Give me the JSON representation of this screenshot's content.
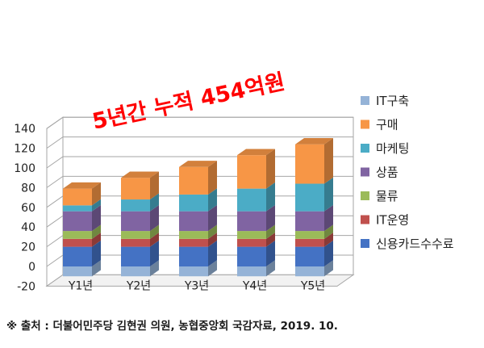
{
  "chart_data": {
    "type": "bar",
    "stacked": true,
    "three_d": true,
    "categories": [
      "Y1년",
      "Y2년",
      "Y3년",
      "Y4년",
      "Y5년"
    ],
    "ylim": [
      -20,
      140
    ],
    "yticks": [
      -20,
      0,
      20,
      40,
      60,
      80,
      100,
      120,
      140
    ],
    "grid": true,
    "legend_position": "right",
    "series": [
      {
        "name": "신용카드수수료",
        "color": "#4472c4",
        "values": [
          20,
          20,
          20,
          20,
          20
        ]
      },
      {
        "name": "IT운영",
        "color": "#c0504d",
        "values": [
          8,
          8,
          8,
          8,
          8
        ]
      },
      {
        "name": "물류",
        "color": "#9bbb59",
        "values": [
          8,
          8,
          8,
          8,
          8
        ]
      },
      {
        "name": "상품",
        "color": "#8064a2",
        "values": [
          20,
          20,
          20,
          20,
          20
        ]
      },
      {
        "name": "마케팅",
        "color": "#4bacc6",
        "values": [
          6,
          12,
          17,
          23,
          28
        ]
      },
      {
        "name": "구매",
        "color": "#f79646",
        "values": [
          17,
          22,
          28,
          34,
          40
        ]
      },
      {
        "name": "IT구축",
        "color": "#95b3d7",
        "values": [
          -10,
          -10,
          -10,
          -10,
          -10
        ]
      }
    ],
    "legend_order": [
      "IT구축",
      "구매",
      "마케팅",
      "상품",
      "물류",
      "IT운영",
      "신용카드수수료"
    ],
    "annotation": "5년간 누적 454억원"
  },
  "source_text": "※ 출처 : 더불어민주당 김현권 의원, 농협중앙회 국감자료, 2019. 10."
}
